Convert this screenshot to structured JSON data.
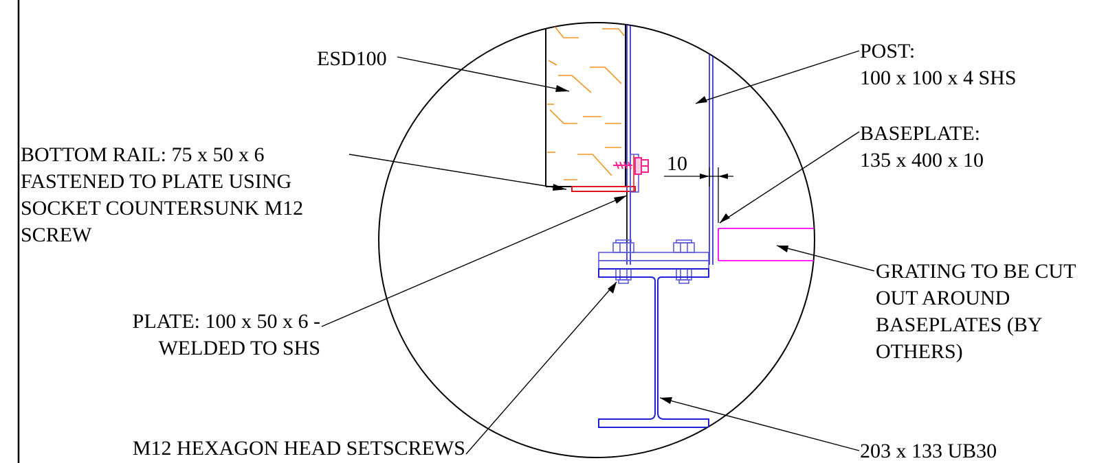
{
  "labels": {
    "esd100": "ESD100",
    "post_1": "POST:",
    "post_2": "100 x 100 x 4 SHS",
    "baseplate_1": "BASEPLATE:",
    "baseplate_2": "135 x 400 x 10",
    "bottom_rail_1": "BOTTOM RAIL: 75 x 50 x 6",
    "bottom_rail_2": "FASTENED TO PLATE USING",
    "bottom_rail_3": "SOCKET COUNTERSUNK M12",
    "bottom_rail_4": "SCREW",
    "plate_1": "PLATE: 100 x 50 x 6 -",
    "plate_2": "WELDED TO SHS",
    "grating_1": "GRATING TO BE CUT",
    "grating_2": "OUT AROUND",
    "grating_3": "BASEPLATES (BY",
    "grating_4": "OTHERS)",
    "setscrews": "M12 HEXAGON HEAD SETSCREWS",
    "ub": "203 x 133 UB30",
    "dimension": "10"
  },
  "colors": {
    "line": "#000000",
    "steel": "#1f1fd6",
    "bolt": "#5a5ad8",
    "rail": "#e0141e",
    "screw": "#ff1f8a",
    "grating": "#ff00ff",
    "hatch": "#f0961e"
  }
}
